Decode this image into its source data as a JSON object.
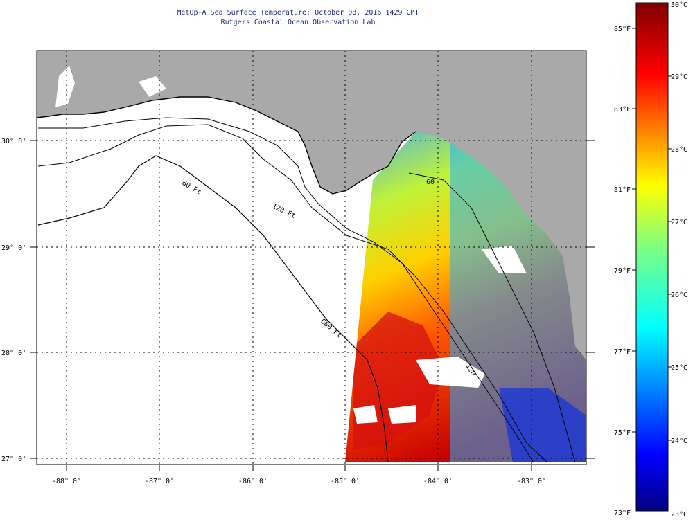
{
  "title": {
    "line1": "MetOp-A Sea Surface Temperature:  October 08, 2016 1429 GMT",
    "line2": "Rutgers Coastal Ocean Observation Lab"
  },
  "map": {
    "lon_labels": [
      "-88° 0'",
      "-87° 0'",
      "-86° 0'",
      "-85° 0'",
      "-84° 0'",
      "-83° 0'"
    ],
    "lat_labels": [
      "30° 0'",
      "29° 0'",
      "28° 0'",
      "27° 0'"
    ],
    "contour_labels": [
      "60 Ft",
      "120 Ft",
      "600 Ft",
      "60",
      "120"
    ],
    "colors": {
      "land": "#a9a9a9",
      "ocean_no_data": "#ffffff",
      "coastline": "#000000"
    }
  },
  "colorbar": {
    "fahrenheit_labels": [
      "85°F",
      "83°F",
      "81°F",
      "79°F",
      "77°F",
      "75°F",
      "73°F"
    ],
    "celsius_labels": [
      "30°C",
      "29°C",
      "28°C",
      "27°C",
      "26°C",
      "25°C",
      "24°C",
      "23°C"
    ],
    "colormap": "jet",
    "range_celsius": [
      23,
      30
    ]
  }
}
